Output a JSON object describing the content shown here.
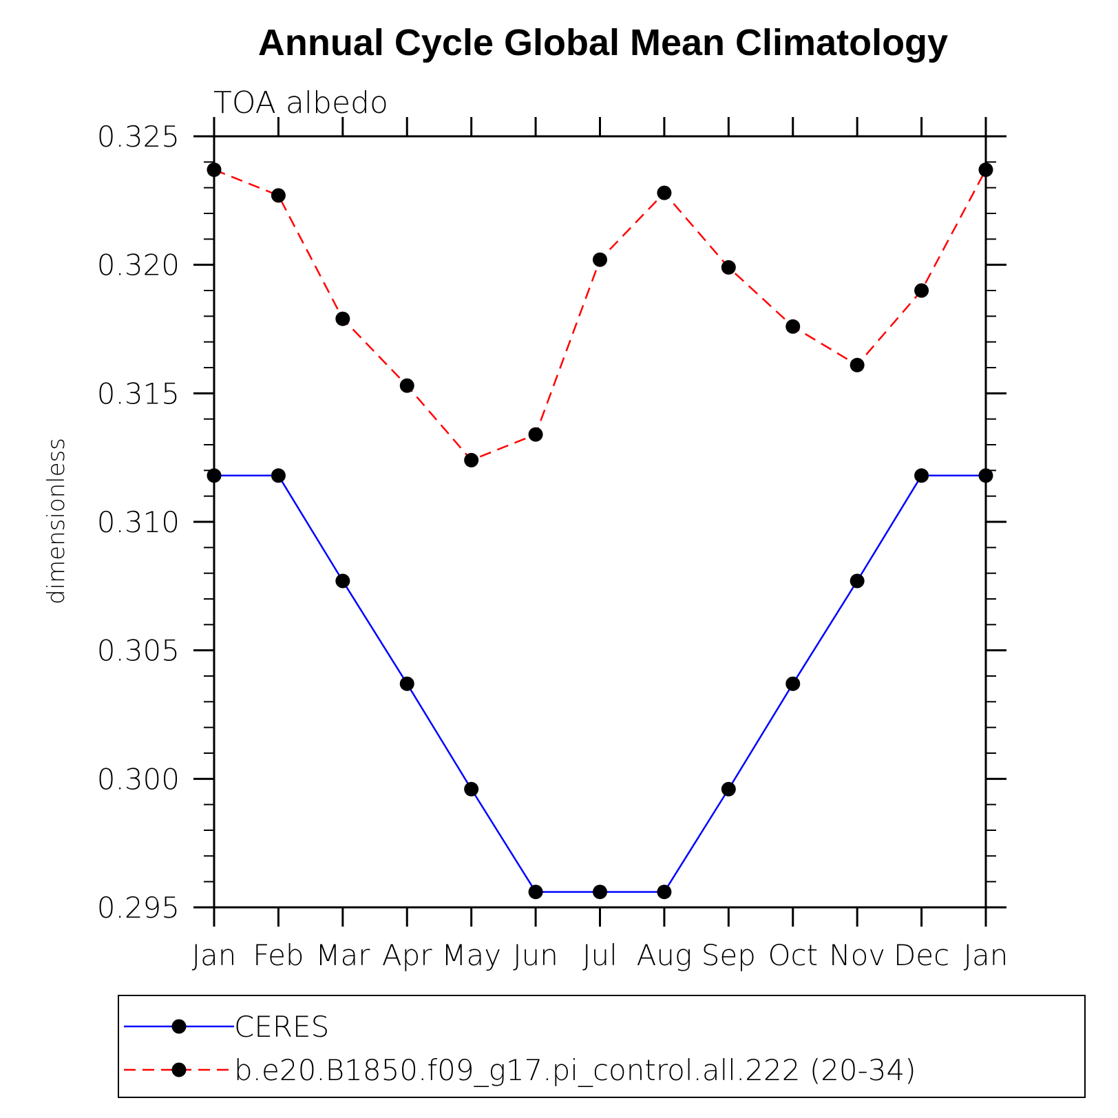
{
  "chart_data": {
    "type": "line",
    "title": "Annual Cycle Global Mean Climatology",
    "subtitle": "TOA albedo",
    "xlabel": "",
    "ylabel": "dimensionless",
    "categories": [
      "Jan",
      "Feb",
      "Mar",
      "Apr",
      "May",
      "Jun",
      "Jul",
      "Aug",
      "Sep",
      "Oct",
      "Nov",
      "Dec",
      "Jan"
    ],
    "ylim": [
      0.295,
      0.325
    ],
    "yticks": [
      "0.295",
      "0.300",
      "0.305",
      "0.310",
      "0.315",
      "0.320",
      "0.325"
    ],
    "y_minor_step": 0.001,
    "grid": false,
    "legend_position": "bottom",
    "series": [
      {
        "name": "CERES",
        "color": "#0000ff",
        "line_style": "solid",
        "marker": "filled-circle",
        "values": [
          0.3118,
          0.3118,
          0.3077,
          0.3037,
          0.2996,
          0.2956,
          0.2956,
          0.2956,
          0.2996,
          0.3037,
          0.3077,
          0.3118,
          0.3118
        ]
      },
      {
        "name": "b.e20.B1850.f09_g17.pi_control.all.222 (20-34)",
        "color": "#ff0000",
        "line_style": "dashed",
        "marker": "filled-circle",
        "values": [
          0.3237,
          0.3227,
          0.3179,
          0.3153,
          0.3124,
          0.3134,
          0.3202,
          0.3228,
          0.3199,
          0.3176,
          0.3161,
          0.319,
          0.3237
        ]
      }
    ]
  }
}
